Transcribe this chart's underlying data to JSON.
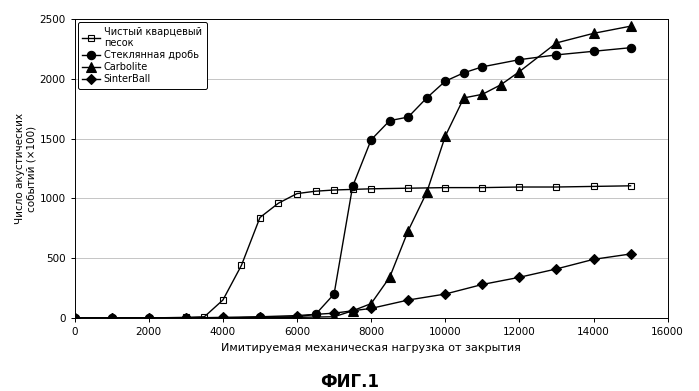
{
  "title": "ФИГ.1",
  "xlabel": "Имитируемая механическая нагрузка от закрытия",
  "ylabel": "Число акустических событий (ѐ1×100)",
  "xlim": [
    0,
    16000
  ],
  "ylim": [
    0,
    2500
  ],
  "xticks": [
    0,
    2000,
    4000,
    6000,
    8000,
    10000,
    12000,
    14000,
    16000
  ],
  "yticks": [
    0,
    500,
    1000,
    1500,
    2000,
    2500
  ],
  "series": [
    {
      "label": "Чистый кварцевый\nпесок",
      "marker": "s",
      "fillstyle": "none",
      "color": "#000000",
      "x": [
        0,
        1000,
        2000,
        3000,
        3500,
        4000,
        4500,
        5000,
        5500,
        6000,
        6500,
        7000,
        7500,
        8000,
        9000,
        10000,
        11000,
        12000,
        13000,
        14000,
        15000
      ],
      "y": [
        0,
        0,
        0,
        5,
        10,
        150,
        440,
        840,
        960,
        1040,
        1060,
        1070,
        1075,
        1080,
        1085,
        1090,
        1090,
        1095,
        1095,
        1100,
        1105
      ]
    },
    {
      "label": "Стеклянная дробь",
      "marker": "o",
      "fillstyle": "full",
      "color": "#000000",
      "x": [
        0,
        1000,
        2000,
        3000,
        4000,
        5000,
        6000,
        6500,
        7000,
        7500,
        8000,
        8500,
        9000,
        9500,
        10000,
        10500,
        11000,
        12000,
        13000,
        14000,
        15000
      ],
      "y": [
        0,
        0,
        0,
        0,
        0,
        5,
        10,
        30,
        200,
        1100,
        1490,
        1650,
        1680,
        1840,
        1980,
        2050,
        2100,
        2160,
        2200,
        2230,
        2260
      ]
    },
    {
      "label": "Carbolite",
      "marker": "^",
      "fillstyle": "full",
      "color": "#000000",
      "x": [
        0,
        1000,
        2000,
        3000,
        4000,
        5000,
        6000,
        7000,
        7500,
        8000,
        8500,
        9000,
        9500,
        10000,
        10500,
        11000,
        11500,
        12000,
        13000,
        14000,
        15000
      ],
      "y": [
        0,
        0,
        0,
        0,
        0,
        5,
        5,
        10,
        60,
        120,
        340,
        730,
        1050,
        1520,
        1840,
        1870,
        1950,
        2060,
        2300,
        2380,
        2440
      ]
    },
    {
      "label": "SinterBall",
      "marker": "D",
      "fillstyle": "full",
      "color": "#000000",
      "x": [
        0,
        1000,
        2000,
        3000,
        4000,
        5000,
        6000,
        7000,
        7500,
        8000,
        9000,
        10000,
        11000,
        12000,
        13000,
        14000,
        15000
      ],
      "y": [
        0,
        0,
        0,
        0,
        5,
        10,
        20,
        40,
        60,
        80,
        150,
        200,
        280,
        340,
        410,
        490,
        535
      ]
    }
  ],
  "background_color": "#ffffff",
  "grid_color": "#bbbbbb"
}
